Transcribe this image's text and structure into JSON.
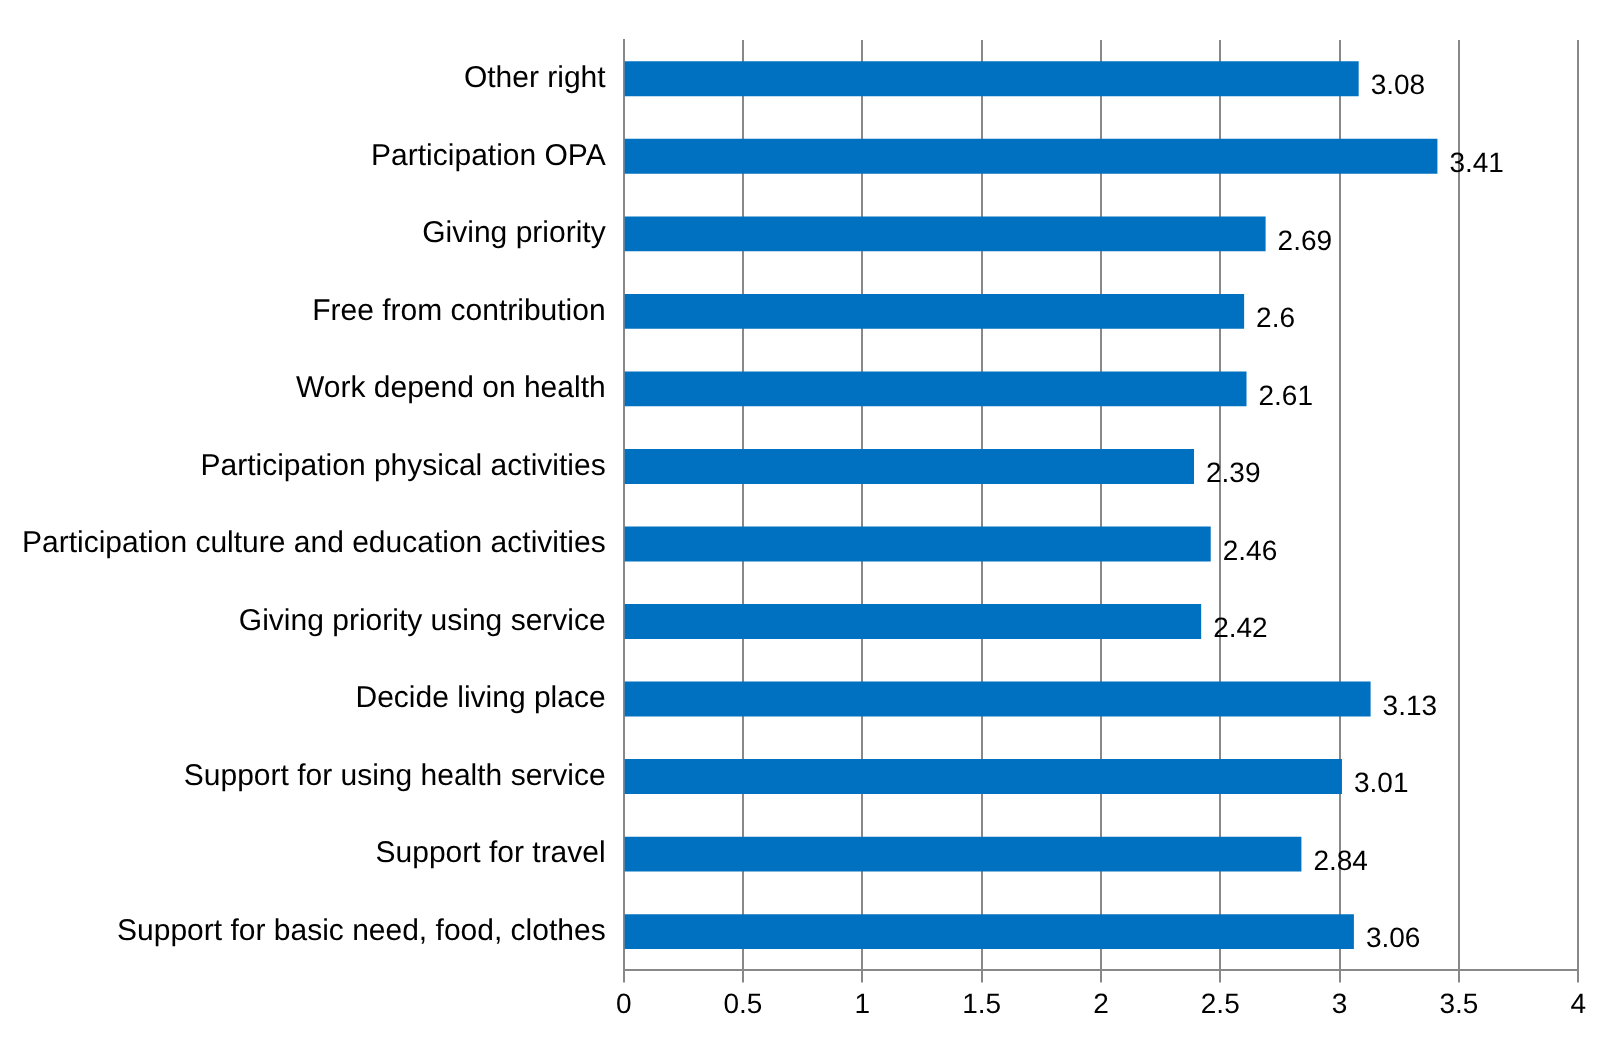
{
  "chart_data": {
    "type": "bar",
    "orientation": "horizontal",
    "categories": [
      "Other right",
      "Participation OPA",
      "Giving priority",
      "Free from contribution",
      "Work depend on health",
      "Participation physical activities",
      "Participation culture and education activities",
      "Giving priority using service",
      "Decide living place",
      "Support for using health service",
      "Support for travel",
      "Support for basic need, food, clothes"
    ],
    "values": [
      3.08,
      3.41,
      2.69,
      2.6,
      2.61,
      2.39,
      2.46,
      2.42,
      3.13,
      3.01,
      2.84,
      3.06
    ],
    "color": "#0070c0",
    "xlim": [
      0,
      4
    ],
    "xticks": [
      0,
      0.5,
      1,
      1.5,
      2,
      2.5,
      3,
      3.5,
      4
    ],
    "grid": "x",
    "data_labels": true,
    "legend": false
  }
}
